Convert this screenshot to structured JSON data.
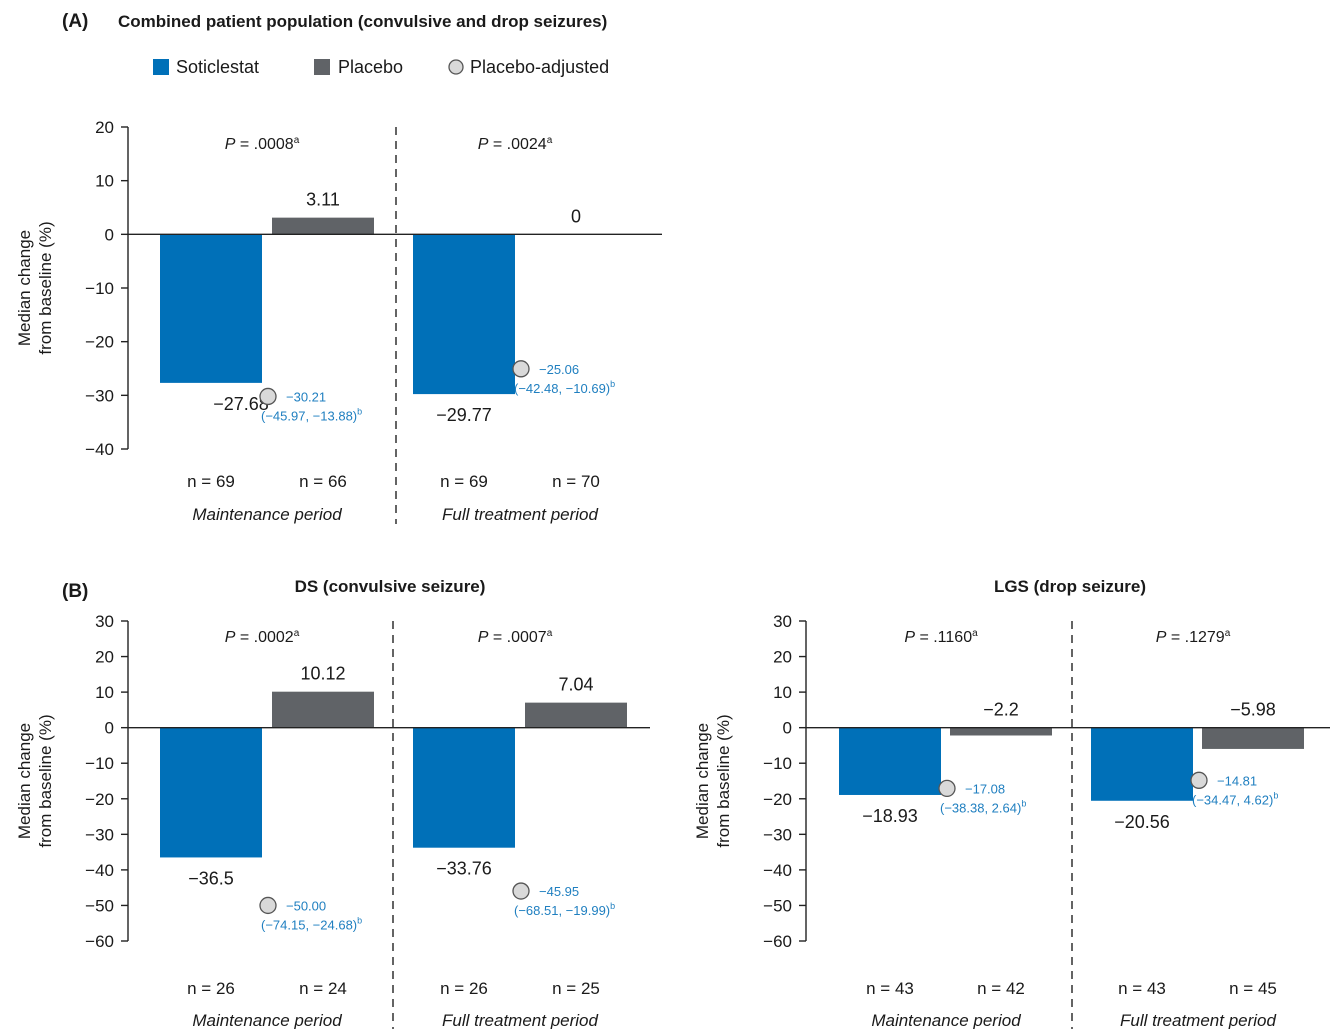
{
  "colors": {
    "soticlestat": "#0070b8",
    "placebo": "#606367",
    "adjusted_fill": "#d9d9d9",
    "adjusted_stroke": "#555555",
    "ci_text": "#1f7fc0"
  },
  "legend": {
    "soticlestat": "Soticlestat",
    "placebo": "Placebo",
    "adjusted": "Placebo-adjusted"
  },
  "chart_data": [
    {
      "panel_letter": "(A)",
      "title": "Combined patient population (convulsive and drop seizures)",
      "type": "bar",
      "ylabel_lines": [
        "Median change",
        "from baseline (%)"
      ],
      "ylim": [
        -40,
        20
      ],
      "yticks": [
        20,
        10,
        0,
        -10,
        -20,
        -30,
        -40
      ],
      "ytick_labels": [
        "20",
        "10",
        "0",
        "−10",
        "−20",
        "−30",
        "−40"
      ],
      "groups": [
        {
          "period": "Maintenance period",
          "p_text": ".0008",
          "p_sup": "a",
          "soticlestat": -27.68,
          "soticlestat_label": "−27.68",
          "placebo": 3.11,
          "placebo_label": "3.11",
          "n_soticlestat": "n = 69",
          "n_placebo": "n = 66",
          "adjusted": -30.21,
          "adjusted_label": "−30.21",
          "ci_label": "(−45.97, −13.88)",
          "ci_sup": "b"
        },
        {
          "period": "Full treatment period",
          "p_text": ".0024",
          "p_sup": "a",
          "soticlestat": -29.77,
          "soticlestat_label": "−29.77",
          "placebo": 0,
          "placebo_label": "0",
          "n_soticlestat": "n = 69",
          "n_placebo": "n = 70",
          "adjusted": -25.06,
          "adjusted_label": "−25.06",
          "ci_label": "(−42.48, −10.69)",
          "ci_sup": "b"
        }
      ]
    },
    {
      "panel_letter": "(B)",
      "title": "DS (convulsive seizure)",
      "type": "bar",
      "ylabel_lines": [
        "Median change",
        "from baseline (%)"
      ],
      "ylim": [
        -60,
        30
      ],
      "yticks": [
        30,
        20,
        10,
        0,
        -10,
        -20,
        -30,
        -40,
        -50,
        -60
      ],
      "ytick_labels": [
        "30",
        "20",
        "10",
        "0",
        "−10",
        "−20",
        "−30",
        "−40",
        "−50",
        "−60"
      ],
      "groups": [
        {
          "period": "Maintenance period",
          "p_text": ".0002",
          "p_sup": "a",
          "soticlestat": -36.5,
          "soticlestat_label": "−36.5",
          "placebo": 10.12,
          "placebo_label": "10.12",
          "n_soticlestat": "n = 26",
          "n_placebo": "n = 24",
          "adjusted": -50.0,
          "adjusted_label": "−50.00",
          "ci_label": "(−74.15, −24.68)",
          "ci_sup": "b"
        },
        {
          "period": "Full treatment period",
          "p_text": ".0007",
          "p_sup": "a",
          "soticlestat": -33.76,
          "soticlestat_label": "−33.76",
          "placebo": 7.04,
          "placebo_label": "7.04",
          "n_soticlestat": "n = 26",
          "n_placebo": "n = 25",
          "adjusted": -45.95,
          "adjusted_label": "−45.95",
          "ci_label": "(−68.51, −19.99)",
          "ci_sup": "b"
        }
      ]
    },
    {
      "panel_letter": "",
      "title": "LGS (drop seizure)",
      "type": "bar",
      "ylabel_lines": [
        "Median change",
        "from baseline (%)"
      ],
      "ylim": [
        -60,
        30
      ],
      "yticks": [
        30,
        20,
        10,
        0,
        -10,
        -20,
        -30,
        -40,
        -50,
        -60
      ],
      "ytick_labels": [
        "30",
        "20",
        "10",
        "0",
        "−10",
        "−20",
        "−30",
        "−40",
        "−50",
        "−60"
      ],
      "groups": [
        {
          "period": "Maintenance period",
          "p_text": ".1160",
          "p_sup": "a",
          "soticlestat": -18.93,
          "soticlestat_label": "−18.93",
          "placebo": -2.2,
          "placebo_label": "−2.2",
          "n_soticlestat": "n = 43",
          "n_placebo": "n = 42",
          "adjusted": -17.08,
          "adjusted_label": "−17.08",
          "ci_label": "(−38.38, 2.64)",
          "ci_sup": "b"
        },
        {
          "period": "Full treatment period",
          "p_text": ".1279",
          "p_sup": "a",
          "soticlestat": -20.56,
          "soticlestat_label": "−20.56",
          "placebo": -5.98,
          "placebo_label": "−5.98",
          "n_soticlestat": "n = 43",
          "n_placebo": "n = 45",
          "adjusted": -14.81,
          "adjusted_label": "−14.81",
          "ci_label": "(−34.47, 4.62)",
          "ci_sup": "b"
        }
      ]
    }
  ]
}
